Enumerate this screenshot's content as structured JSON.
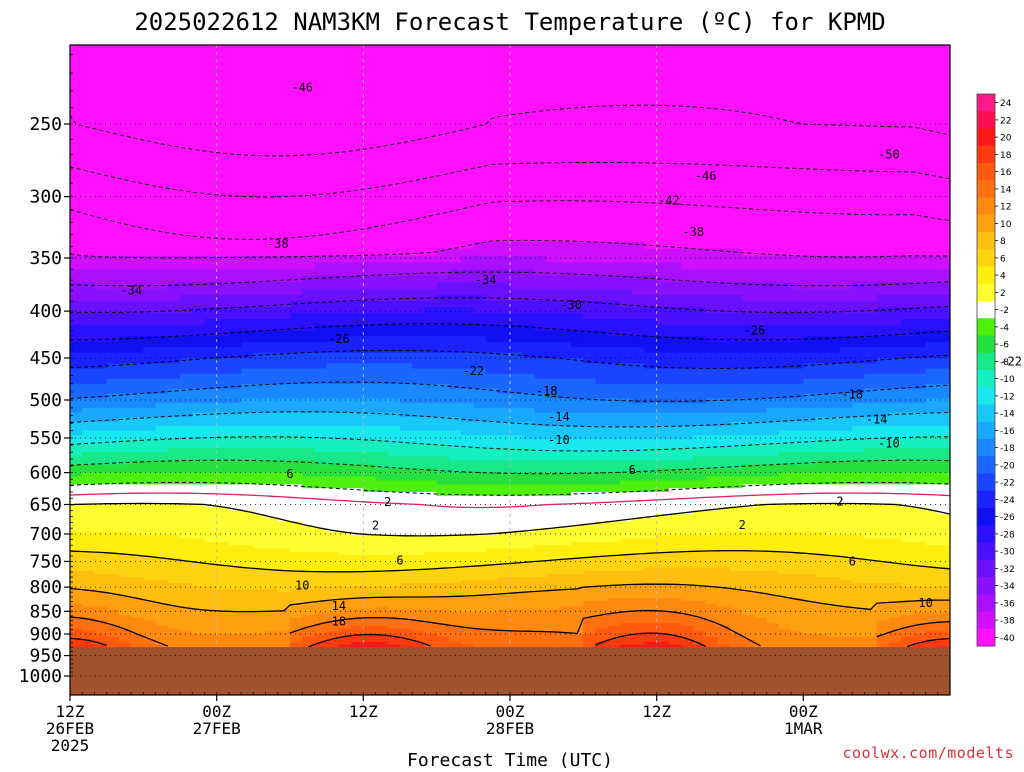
{
  "chart_data": {
    "type": "heatmap",
    "title": "2025022612 NAM3KM Forecast Temperature (ºC) for KPMD",
    "xlabel": "Forecast Time (UTC)",
    "ylabel": "",
    "y_axis": {
      "scale": "pressure (hPa), inverted",
      "ticks": [
        250,
        300,
        350,
        400,
        450,
        500,
        550,
        600,
        650,
        700,
        750,
        800,
        850,
        900,
        950,
        1000
      ]
    },
    "x_axis": {
      "ticks": [
        {
          "time": "2025-02-26T12Z",
          "label1": "12Z",
          "label2": "26FEB",
          "label3": "2025"
        },
        {
          "time": "2025-02-27T00Z",
          "label1": "00Z",
          "label2": "27FEB",
          "label3": ""
        },
        {
          "time": "2025-02-27T12Z",
          "label1": "12Z",
          "label2": "",
          "label3": ""
        },
        {
          "time": "2025-02-28T00Z",
          "label1": "00Z",
          "label2": "28FEB",
          "label3": ""
        },
        {
          "time": "2025-02-28T12Z",
          "label1": "12Z",
          "label2": "",
          "label3": ""
        },
        {
          "time": "2025-03-01T00Z",
          "label1": "00Z",
          "label2": "1MAR",
          "label3": ""
        }
      ]
    },
    "colorbar": {
      "labels": [
        "24",
        "22",
        "20",
        "18",
        "16",
        "14",
        "12",
        "10",
        "8",
        "6",
        "4",
        "2",
        "-2",
        "-4",
        "-6",
        "-8",
        "-10",
        "-12",
        "-14",
        "-16",
        "-18",
        "-20",
        "-22",
        "-24",
        "-26",
        "-28",
        "-30",
        "-32",
        "-34",
        "-36",
        "-38",
        "-40"
      ],
      "colors": [
        "#ff1a8c",
        "#ff1050",
        "#ff1a1a",
        "#ff3a10",
        "#ff5a10",
        "#ff7010",
        "#ff8a10",
        "#ffa010",
        "#ffbe10",
        "#ffd310",
        "#ffee10",
        "#ffff30",
        "#ffffff",
        "#4ef010",
        "#26e040",
        "#18e888",
        "#16f0c0",
        "#1ae8f0",
        "#18c8f8",
        "#1aa8ff",
        "#1a88ff",
        "#1a66ff",
        "#1a44ff",
        "#1a22ff",
        "#1010f0",
        "#2a10ff",
        "#4a10ff",
        "#6a10ff",
        "#8a10ff",
        "#aa10ff",
        "#ce10ff",
        "#ff10ff"
      ]
    },
    "surface_pressure_hPa": 930,
    "ground_color": "#a0522d",
    "contours_solid_C": [
      2,
      6,
      10,
      14,
      18
    ],
    "contours_dashed_C": [
      -2,
      -6,
      -10,
      -14,
      -18,
      -22,
      -26,
      -30,
      -34,
      -38,
      -42,
      -46,
      -50
    ],
    "zero_line_color": "#e0206a",
    "contour_labels": [
      {
        "value": "-46",
        "time_h": 19,
        "p": 228
      },
      {
        "value": "-50",
        "time_h": 67,
        "p": 270
      },
      {
        "value": "-46",
        "time_h": 52,
        "p": 285
      },
      {
        "value": "-46",
        "time_h": 84,
        "p": 279
      },
      {
        "value": "-42",
        "time_h": 49,
        "p": 303
      },
      {
        "value": "-42",
        "time_h": 82,
        "p": 308
      },
      {
        "value": "-38",
        "time_h": 17,
        "p": 338
      },
      {
        "value": "-38",
        "time_h": 51,
        "p": 328
      },
      {
        "value": "-38",
        "time_h": 85,
        "p": 333
      },
      {
        "value": "-34",
        "time_h": 5,
        "p": 380
      },
      {
        "value": "-34",
        "time_h": 34,
        "p": 370
      },
      {
        "value": "-34",
        "time_h": 81,
        "p": 357
      },
      {
        "value": "-30",
        "time_h": 41,
        "p": 394
      },
      {
        "value": "-30",
        "time_h": 79,
        "p": 386
      },
      {
        "value": "-26",
        "time_h": 22,
        "p": 429
      },
      {
        "value": "-26",
        "time_h": 56,
        "p": 420
      },
      {
        "value": "-26",
        "time_h": 82,
        "p": 412
      },
      {
        "value": "-22",
        "time_h": 33,
        "p": 465
      },
      {
        "value": "-22",
        "time_h": 77,
        "p": 454
      },
      {
        "value": "-18",
        "time_h": 39,
        "p": 489
      },
      {
        "value": "-18",
        "time_h": 64,
        "p": 493
      },
      {
        "value": "-14",
        "time_h": 40,
        "p": 522
      },
      {
        "value": "-14",
        "time_h": 66,
        "p": 525
      },
      {
        "value": "-10",
        "time_h": 40,
        "p": 553
      },
      {
        "value": "-10",
        "time_h": 67,
        "p": 558
      },
      {
        "value": "6",
        "time_h": 18,
        "p": 602
      },
      {
        "value": "6",
        "time_h": 46,
        "p": 596
      },
      {
        "value": "6",
        "time_h": 80,
        "p": 591
      },
      {
        "value": "2",
        "time_h": 26,
        "p": 646
      },
      {
        "value": "2",
        "time_h": 63,
        "p": 645
      },
      {
        "value": "2",
        "time_h": 25,
        "p": 685
      },
      {
        "value": "2",
        "time_h": 55,
        "p": 684
      },
      {
        "value": "2",
        "time_h": 92,
        "p": 716
      },
      {
        "value": "6",
        "time_h": 27,
        "p": 748
      },
      {
        "value": "6",
        "time_h": 64,
        "p": 750
      },
      {
        "value": "10",
        "time_h": 19,
        "p": 797
      },
      {
        "value": "10",
        "time_h": 70,
        "p": 832
      },
      {
        "value": "14",
        "time_h": 22,
        "p": 839
      },
      {
        "value": "18",
        "time_h": 22,
        "p": 872
      }
    ]
  },
  "watermark": "coolwx.com/modelts"
}
